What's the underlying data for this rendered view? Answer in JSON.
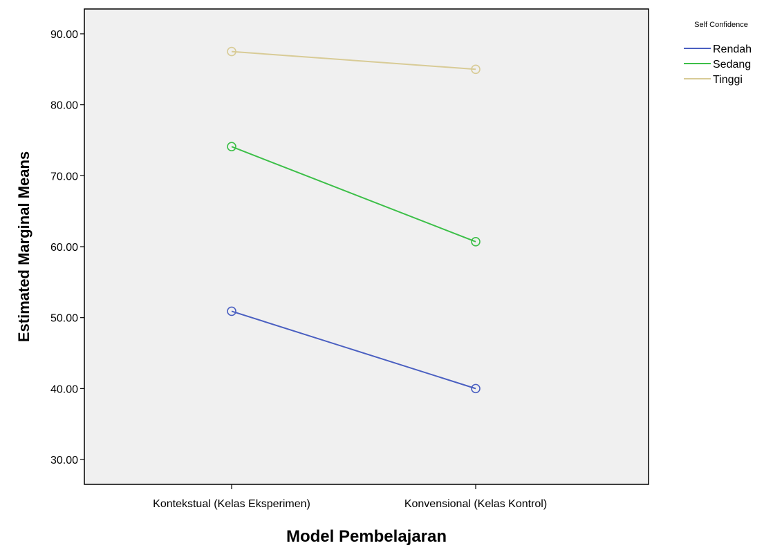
{
  "chart_data": {
    "type": "line",
    "xlabel": "Model Pembelajaran",
    "ylabel": "Estimated Marginal Means",
    "categories": [
      "Kontekstual (Kelas Eksperimen)",
      "Konvensional (Kelas Kontrol)"
    ],
    "yticks": [
      "30.00",
      "40.00",
      "50.00",
      "60.00",
      "70.00",
      "80.00",
      "90.00"
    ],
    "ylim": [
      26.5,
      93.5
    ],
    "grid": false,
    "legend": {
      "title": "Self Confidence",
      "position": "top-right"
    },
    "marker": "open-circle",
    "series": [
      {
        "name": "Rendah",
        "color": "#4a5fc1",
        "values": [
          50.9,
          40.0
        ]
      },
      {
        "name": "Sedang",
        "color": "#3cbf48",
        "values": [
          74.1,
          60.7
        ]
      },
      {
        "name": "Tinggi",
        "color": "#d8cb96",
        "values": [
          87.5,
          85.0
        ]
      }
    ]
  }
}
